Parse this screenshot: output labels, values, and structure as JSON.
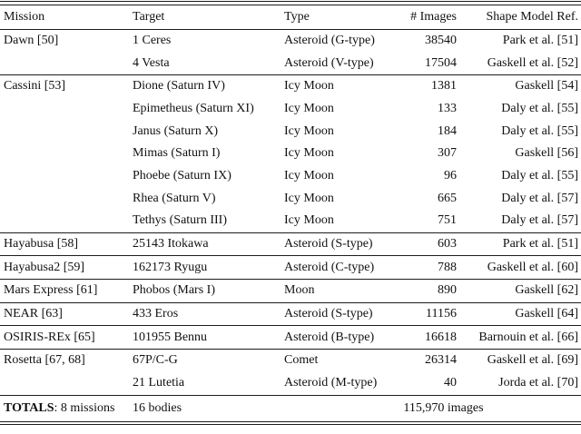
{
  "table": {
    "headers": [
      "Mission",
      "Target",
      "Type",
      "# Images",
      "Shape Model Ref."
    ],
    "groups": [
      {
        "mission": "Dawn [50]",
        "rows": [
          {
            "target": "1 Ceres",
            "type": "Asteroid (G-type)",
            "images": "38540",
            "ref": "Park et al. [51]"
          },
          {
            "target": "4 Vesta",
            "type": "Asteroid (V-type)",
            "images": "17504",
            "ref": "Gaskell et al. [52]"
          }
        ]
      },
      {
        "mission": "Cassini [53]",
        "rows": [
          {
            "target": "Dione (Saturn IV)",
            "type": "Icy Moon",
            "images": "1381",
            "ref": "Gaskell [54]"
          },
          {
            "target": "Epimetheus (Saturn XI)",
            "type": "Icy Moon",
            "images": "133",
            "ref": "Daly et al. [55]"
          },
          {
            "target": "Janus (Saturn X)",
            "type": "Icy Moon",
            "images": "184",
            "ref": "Daly et al. [55]"
          },
          {
            "target": "Mimas (Saturn I)",
            "type": "Icy Moon",
            "images": "307",
            "ref": "Gaskell [56]"
          },
          {
            "target": "Phoebe (Saturn IX)",
            "type": "Icy Moon",
            "images": "96",
            "ref": "Daly et al. [55]"
          },
          {
            "target": "Rhea (Saturn V)",
            "type": "Icy Moon",
            "images": "665",
            "ref": "Daly et al. [57]"
          },
          {
            "target": "Tethys (Saturn III)",
            "type": "Icy Moon",
            "images": "751",
            "ref": "Daly et al. [57]"
          }
        ]
      },
      {
        "mission": "Hayabusa [58]",
        "rows": [
          {
            "target": "25143 Itokawa",
            "type": "Asteroid (S-type)",
            "images": "603",
            "ref": "Park et al. [51]"
          }
        ]
      },
      {
        "mission": "Hayabusa2 [59]",
        "rows": [
          {
            "target": "162173 Ryugu",
            "type": "Asteroid (C-type)",
            "images": "788",
            "ref": "Gaskell et al. [60]"
          }
        ]
      },
      {
        "mission": "Mars Express [61]",
        "rows": [
          {
            "target": "Phobos (Mars I)",
            "type": "Moon",
            "images": "890",
            "ref": "Gaskell [62]"
          }
        ]
      },
      {
        "mission": "NEAR [63]",
        "rows": [
          {
            "target": "433 Eros",
            "type": "Asteroid (S-type)",
            "images": "11156",
            "ref": "Gaskell [64]"
          }
        ]
      },
      {
        "mission": "OSIRIS-REx [65]",
        "rows": [
          {
            "target": "101955 Bennu",
            "type": "Asteroid (B-type)",
            "images": "16618",
            "ref": "Barnouin et al. [66]"
          }
        ]
      },
      {
        "mission": "Rosetta [67, 68]",
        "rows": [
          {
            "target": "67P/C-G",
            "type": "Comet",
            "images": "26314",
            "ref": "Gaskell et al. [69]"
          },
          {
            "target": "21 Lutetia",
            "type": "Asteroid (M-type)",
            "images": "40",
            "ref": "Jorda et al. [70]"
          }
        ]
      }
    ],
    "totals": {
      "label": "TOTALS",
      "missions_text": ": 8 missions",
      "bodies_text": "16 bodies",
      "images_text": "115,970 images"
    },
    "colors": {
      "text": "#111111",
      "rule": "#1c1c1c",
      "background": "#ffffff"
    }
  }
}
